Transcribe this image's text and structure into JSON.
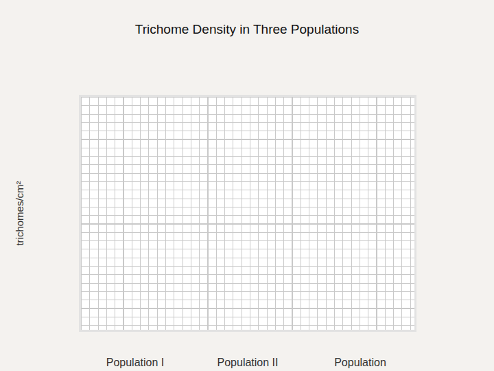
{
  "chart_data": {
    "type": "bar",
    "title": "Trichome Density in Three Populations",
    "y_label": "trichomes/cm²",
    "categories": [
      "Population I",
      "Population II",
      "Population"
    ],
    "values": [
      null,
      null,
      null
    ],
    "grid": true,
    "tick_labels": "x"
  }
}
